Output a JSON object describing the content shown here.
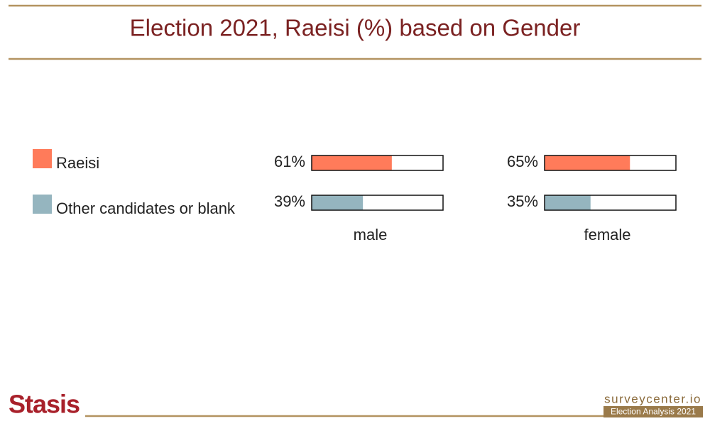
{
  "chart_data": {
    "type": "bar",
    "orientation": "horizontal",
    "title": "Election 2021, Raeisi (%) based on Gender",
    "categories": [
      "male",
      "female"
    ],
    "series": [
      {
        "name": "Raeisi",
        "color": "#ff7b5a",
        "values": [
          61,
          65
        ],
        "value_labels": [
          "61%",
          "65%"
        ]
      },
      {
        "name": "Other candidates or blank",
        "color": "#95b5bf",
        "values": [
          39,
          35
        ],
        "value_labels": [
          "39%",
          "35%"
        ]
      }
    ],
    "xlim": [
      0,
      100
    ]
  },
  "footer": {
    "logo": "Stasis",
    "site": "surveycenter.io",
    "tagline": "Election Analysis 2021"
  }
}
